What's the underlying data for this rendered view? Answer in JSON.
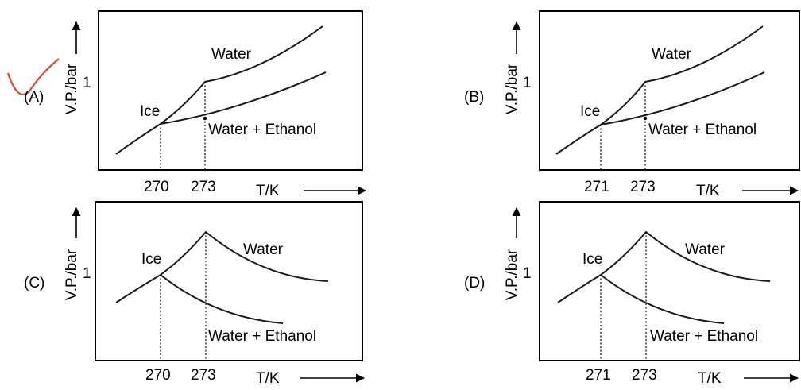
{
  "question": {
    "options": [
      {
        "id": "A",
        "label": "(A)",
        "checked": true,
        "ylabel": "V.P./bar",
        "y_tick": "1",
        "xlabel": "T/K",
        "x_ticks": [
          "270",
          "273"
        ],
        "curve_labels": {
          "water": "Water",
          "ice": "Ice",
          "mixture": "Water + Ethanol"
        }
      },
      {
        "id": "B",
        "label": "(B)",
        "checked": false,
        "ylabel": "V.P./bar",
        "y_tick": "1",
        "xlabel": "T/K",
        "x_ticks": [
          "271",
          "273"
        ],
        "curve_labels": {
          "water": "Water",
          "ice": "Ice",
          "mixture": "Water + Ethanol"
        }
      },
      {
        "id": "C",
        "label": "(C)",
        "checked": false,
        "ylabel": "V.P./bar",
        "y_tick": "1",
        "xlabel": "T/K",
        "x_ticks": [
          "270",
          "273"
        ],
        "curve_labels": {
          "water": "Water",
          "ice": "Ice",
          "mixture": "Water + Ethanol"
        }
      },
      {
        "id": "D",
        "label": "(D)",
        "checked": false,
        "ylabel": "V.P./bar",
        "y_tick": "1",
        "xlabel": "T/K",
        "x_ticks": [
          "271",
          "273"
        ],
        "curve_labels": {
          "water": "Water",
          "ice": "Ice",
          "mixture": "Water + Ethanol"
        }
      }
    ],
    "colors": {
      "ink": "#000000",
      "check_mark": "#e2492f"
    }
  }
}
